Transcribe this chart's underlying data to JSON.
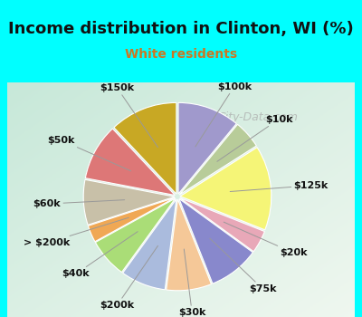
{
  "title": "Income distribution in Clinton, WI (%)",
  "subtitle": "White residents",
  "title_color": "#111111",
  "subtitle_color": "#cc7722",
  "bg_outer": "#00ffff",
  "bg_chart_topleft": "#e0f0e8",
  "bg_chart_center": "#f5faf5",
  "watermark": "City-Data.com",
  "labels": [
    "$100k",
    "$10k",
    "$125k",
    "$20k",
    "$75k",
    "$30k",
    "$200k",
    "$40k",
    "> $200k",
    "$60k",
    "$50k",
    "$150k"
  ],
  "sizes": [
    11,
    5,
    15,
    4,
    9,
    8,
    8,
    7,
    3,
    8,
    10,
    12
  ],
  "colors": [
    "#a099cc",
    "#b8cc99",
    "#f5f577",
    "#e8a8b8",
    "#8888cc",
    "#f5c898",
    "#aabbdd",
    "#aadd77",
    "#f0a855",
    "#c8c0a8",
    "#dd7777",
    "#c8a824"
  ],
  "startangle": 90,
  "explode": 0.03,
  "pct_distance": 0.0,
  "label_distance": 1.28,
  "title_fontsize": 13,
  "subtitle_fontsize": 10,
  "label_fontsize": 8
}
